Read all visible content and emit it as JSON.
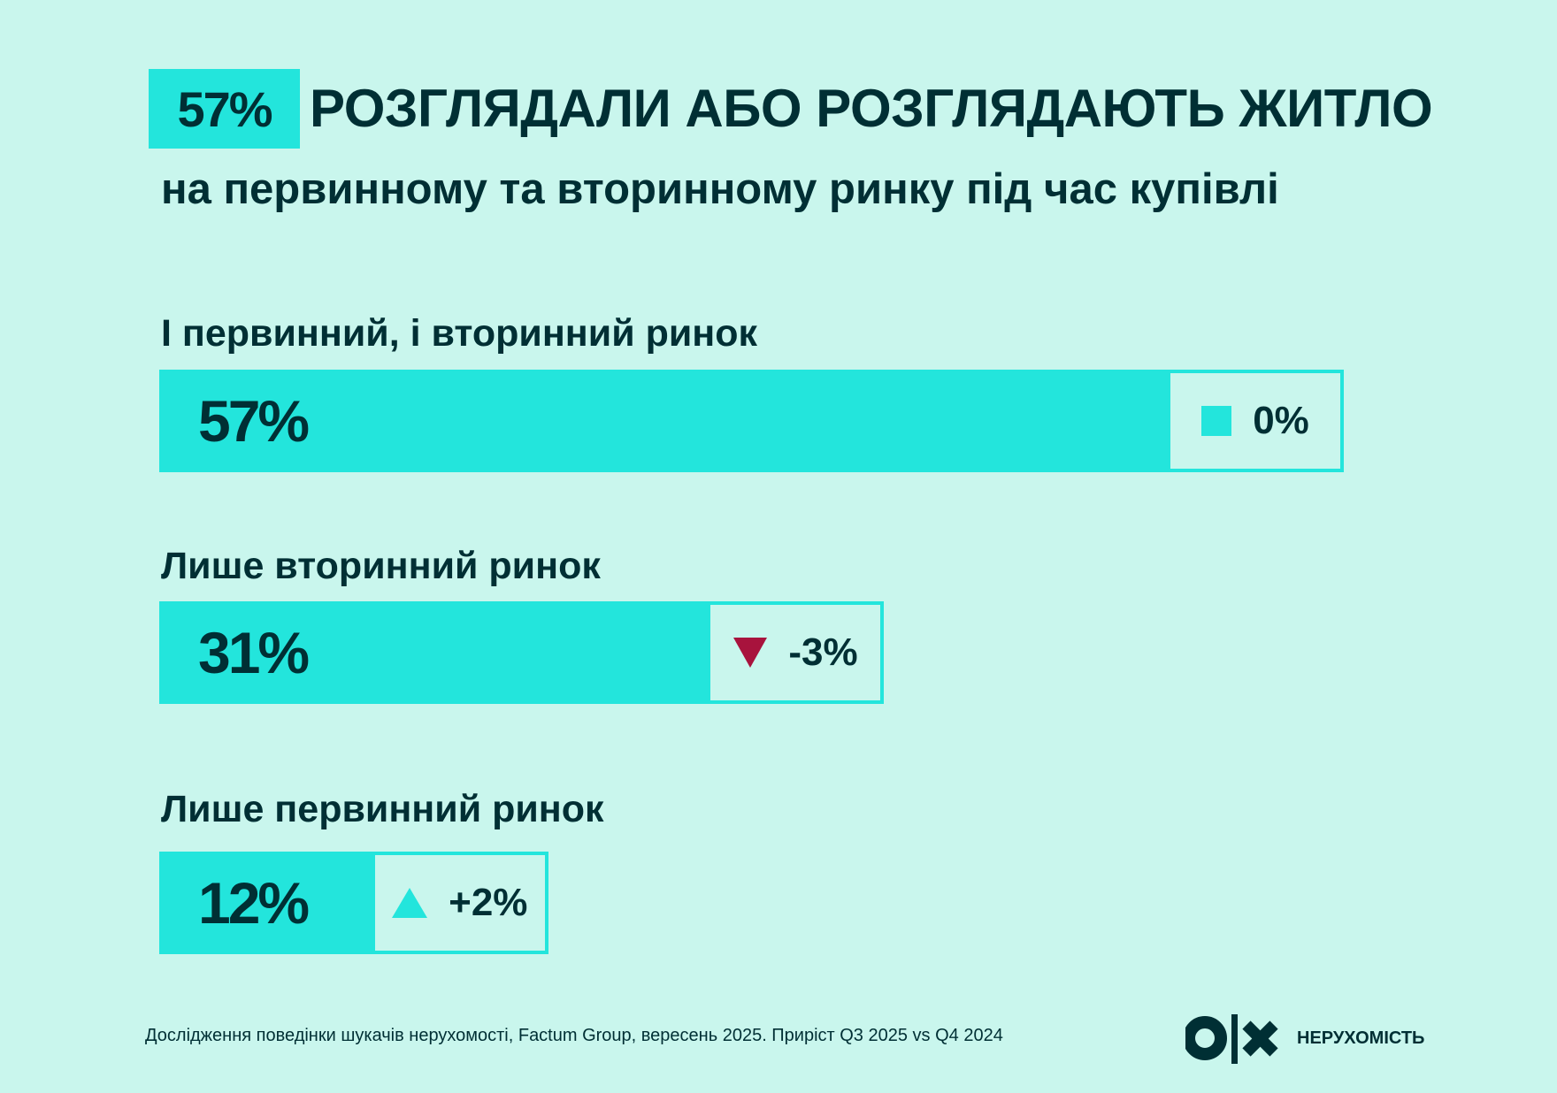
{
  "header": {
    "highlight": "57%",
    "title": "РОЗГЛЯДАЛИ АБО РОЗГЛЯДАЮТЬ ЖИТЛО",
    "subtitle": "на первинному та вторинному ринку під час купівлі"
  },
  "colors": {
    "background": "#c9f6ed",
    "bar": "#23e5dc",
    "text": "#002f34",
    "down": "#a8133d",
    "up": "#23e5dc",
    "neutral": "#23e5dc"
  },
  "chart_data": {
    "type": "bar",
    "orientation": "horizontal",
    "categories": [
      "І первинний, і вторинний ринок",
      "Лише вторинний ринок",
      "Лише первинний ринок"
    ],
    "values": [
      57,
      31,
      12
    ],
    "value_labels": [
      "57%",
      "31%",
      "12%"
    ],
    "changes": [
      {
        "label": "0%",
        "value": 0,
        "icon": "square-icon"
      },
      {
        "label": "-3%",
        "value": -3,
        "icon": "triangle-down-icon"
      },
      {
        "label": "+2%",
        "value": 2,
        "icon": "triangle-up-icon"
      }
    ]
  },
  "footer": {
    "source": "Дослідження поведінки шукачів нерухомості, Factum Group, вересень 2025. Приріст Q3 2025 vs Q4 2024",
    "brand": "НЕРУХОМІСТЬ",
    "logo_text": "olx"
  }
}
